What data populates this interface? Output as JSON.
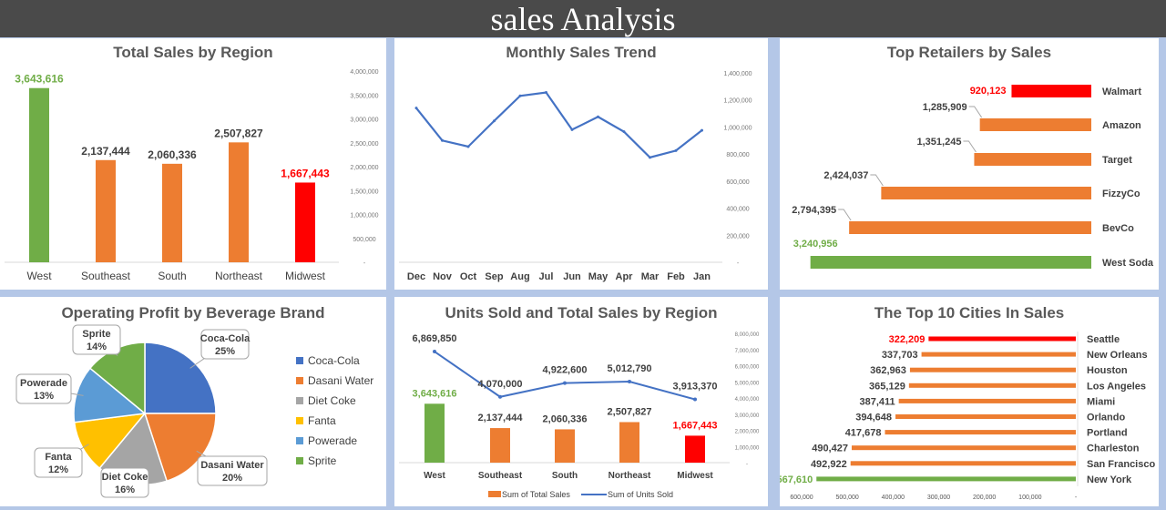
{
  "header": {
    "title": "sales Analysis"
  },
  "chart_data": [
    {
      "type": "bar",
      "title": "Total Sales by Region",
      "categories": [
        "West",
        "Southeast",
        "South",
        "Northeast",
        "Midwest"
      ],
      "values": [
        3643616,
        2137444,
        2060336,
        2507827,
        1667443
      ],
      "value_labels": [
        "3,643,616",
        "2,137,444",
        "2,060,336",
        "2,507,827",
        "1,667,443"
      ],
      "colors": [
        "#70AD47",
        "#ED7D31",
        "#ED7D31",
        "#ED7D31",
        "#FF0000"
      ],
      "label_colors": [
        "#70AD47",
        "#404040",
        "#404040",
        "#404040",
        "#FF0000"
      ],
      "ylim": [
        0,
        4000000
      ],
      "yticks": [
        0,
        500000,
        1000000,
        1500000,
        2000000,
        2500000,
        3000000,
        3500000,
        4000000
      ],
      "ytick_labels": [
        "-",
        "500,000",
        "1,000,000",
        "1,500,000",
        "2,000,000",
        "2,500,000",
        "3,000,000",
        "3,500,000",
        "4,000,000"
      ],
      "y_axis_side": "right",
      "grid": false
    },
    {
      "type": "line",
      "title": "Monthly Sales Trend",
      "categories": [
        "Dec",
        "Nov",
        "Oct",
        "Sep",
        "Aug",
        "Jul",
        "Jun",
        "May",
        "Apr",
        "Mar",
        "Feb",
        "Jan"
      ],
      "values": [
        1140000,
        900000,
        855000,
        1045000,
        1230000,
        1255000,
        980000,
        1075000,
        965000,
        775000,
        825000,
        975000
      ],
      "color": "#4472C4",
      "ylim": [
        0,
        1400000
      ],
      "yticks": [
        0,
        200000,
        400000,
        600000,
        800000,
        1000000,
        1200000,
        1400000
      ],
      "ytick_labels": [
        "-",
        "200,000",
        "400,000",
        "600,000",
        "800,000",
        "1,000,000",
        "1,200,000",
        "1,400,000"
      ],
      "y_axis_side": "right",
      "grid": false
    },
    {
      "type": "bar",
      "orientation": "horizontal",
      "title": "Top Retailers by Sales",
      "categories": [
        "Walmart",
        "Amazon",
        "Target",
        "FizzyCo",
        "BevCo",
        "West Soda"
      ],
      "values": [
        920123,
        1285909,
        1351245,
        2424037,
        2794395,
        3240956
      ],
      "value_labels": [
        "920,123",
        "1,285,909",
        "1,351,245",
        "2,424,037",
        "2,794,395",
        "3,240,956"
      ],
      "colors": [
        "#FF0000",
        "#ED7D31",
        "#ED7D31",
        "#ED7D31",
        "#ED7D31",
        "#70AD47"
      ],
      "label_colors": [
        "#FF0000",
        "#404040",
        "#404040",
        "#404040",
        "#404040",
        "#70AD47"
      ],
      "reversed_x": true
    },
    {
      "type": "pie",
      "title": "Operating Profit by Beverage Brand",
      "categories": [
        "Coca-Cola",
        "Dasani Water",
        "Diet Coke",
        "Fanta",
        "Powerade",
        "Sprite"
      ],
      "values": [
        25,
        20,
        16,
        12,
        13,
        14
      ],
      "value_labels": [
        "25%",
        "20%",
        "16%",
        "12%",
        "13%",
        "14%"
      ],
      "colors": [
        "#4472C4",
        "#ED7D31",
        "#A5A5A5",
        "#FFC000",
        "#5B9BD5",
        "#70AD47"
      ],
      "legend": "right"
    },
    {
      "type": "bar+line",
      "title": "Units Sold and Total Sales by  Region",
      "categories": [
        "West",
        "Southeast",
        "South",
        "Northeast",
        "Midwest"
      ],
      "series": [
        {
          "name": "Sum of Total Sales",
          "type": "bar",
          "values": [
            3643616,
            2137444,
            2060336,
            2507827,
            1667443
          ],
          "value_labels": [
            "3,643,616",
            "2,137,444",
            "2,060,336",
            "2,507,827",
            "1,667,443"
          ],
          "colors": [
            "#70AD47",
            "#ED7D31",
            "#ED7D31",
            "#ED7D31",
            "#FF0000"
          ],
          "label_colors": [
            "#70AD47",
            "#404040",
            "#404040",
            "#404040",
            "#FF0000"
          ]
        },
        {
          "name": "Sum of Units Sold",
          "type": "line",
          "values": [
            6869850,
            4070000,
            4922600,
            5012790,
            3913370
          ],
          "value_labels": [
            "6,869,850",
            "4,070,000",
            "4,922,600",
            "5,012,790",
            "3,913,370"
          ],
          "color": "#4472C4"
        }
      ],
      "ylim": [
        0,
        8000000
      ],
      "yticks": [
        0,
        1000000,
        2000000,
        3000000,
        4000000,
        5000000,
        6000000,
        7000000,
        8000000
      ],
      "ytick_labels": [
        "-",
        "1,000,000",
        "2,000,000",
        "3,000,000",
        "4,000,000",
        "5,000,000",
        "6,000,000",
        "7,000,000",
        "8,000,000"
      ],
      "y_axis_side": "right",
      "legend": "bottom",
      "legend_color_bar": "#ED7D31"
    },
    {
      "type": "bar",
      "orientation": "horizontal",
      "title": "The Top 10 Cities In Sales",
      "categories": [
        "Seattle",
        "New Orleans",
        "Houston",
        "Los Angeles",
        "Miami",
        "Orlando",
        "Portland",
        "Charleston",
        "San Francisco",
        "New York"
      ],
      "values": [
        322209,
        337703,
        362963,
        365129,
        387411,
        394648,
        417678,
        490427,
        492922,
        567610
      ],
      "value_labels": [
        "322,209",
        "337,703",
        "362,963",
        "365,129",
        "387,411",
        "394,648",
        "417,678",
        "490,427",
        "492,922",
        "567,610"
      ],
      "colors": [
        "#FF0000",
        "#ED7D31",
        "#ED7D31",
        "#ED7D31",
        "#ED7D31",
        "#ED7D31",
        "#ED7D31",
        "#ED7D31",
        "#ED7D31",
        "#70AD47"
      ],
      "label_colors": [
        "#FF0000",
        "#404040",
        "#404040",
        "#404040",
        "#404040",
        "#404040",
        "#404040",
        "#404040",
        "#404040",
        "#70AD47"
      ],
      "reversed_x": true,
      "xlim": [
        0,
        600000
      ],
      "xticks": [
        600000,
        500000,
        400000,
        300000,
        200000,
        100000,
        0
      ],
      "xtick_labels": [
        "600,000",
        "500,000",
        "400,000",
        "300,000",
        "200,000",
        "100,000",
        "-"
      ]
    }
  ]
}
